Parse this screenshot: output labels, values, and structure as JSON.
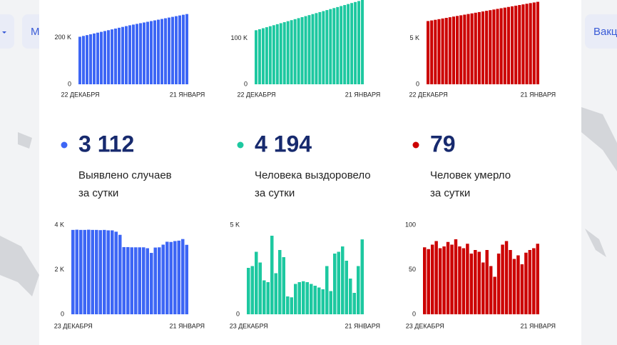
{
  "nav": [
    "М",
    "Вакц"
  ],
  "stats": [
    {
      "value": "3 112",
      "lines": [
        "Выявлено случаев",
        "за сутки"
      ]
    },
    {
      "value": "4 194",
      "lines": [
        "Человека выздоровело",
        "за сутки"
      ]
    },
    {
      "value": "79",
      "lines": [
        "Человек умерло",
        "за сутки"
      ]
    }
  ],
  "chart_data": [
    {
      "type": "bar",
      "color": "#3d66f5",
      "ylim": [
        0,
        360000
      ],
      "yticks": [
        0,
        {
          "value": 200000,
          "label": "200 K"
        }
      ],
      "categories": [
        "22 ДЕКАБРЯ",
        null,
        null,
        null,
        null,
        null,
        null,
        null,
        null,
        null,
        null,
        null,
        null,
        null,
        null,
        null,
        null,
        null,
        null,
        null,
        null,
        null,
        null,
        null,
        null,
        null,
        null,
        null,
        null,
        null,
        "21 ЯНВАРЯ"
      ],
      "values": [
        203000,
        206500,
        210000,
        213500,
        217000,
        220500,
        224000,
        227500,
        231000,
        234500,
        238000,
        241500,
        245000,
        248500,
        252000,
        255000,
        258000,
        261000,
        264000,
        267000,
        270000,
        273000,
        276000,
        279000,
        282000,
        285000,
        288000,
        291000,
        294000,
        297000,
        300000
      ]
    },
    {
      "type": "bar",
      "color": "#1dc8a0",
      "ylim": [
        0,
        184000
      ],
      "yticks": [
        0,
        {
          "value": 100000,
          "label": "100 K"
        }
      ],
      "categories": [
        "22 ДЕКАБРЯ",
        null,
        null,
        null,
        null,
        null,
        null,
        null,
        null,
        null,
        null,
        null,
        null,
        null,
        null,
        null,
        null,
        null,
        null,
        null,
        null,
        null,
        null,
        null,
        null,
        null,
        null,
        null,
        null,
        null,
        "21 ЯНВАРЯ"
      ],
      "values": [
        118000,
        120200,
        122400,
        124600,
        126800,
        129000,
        131200,
        133400,
        135600,
        137800,
        140000,
        142200,
        144400,
        146600,
        148800,
        151000,
        153200,
        155400,
        157600,
        159800,
        162000,
        164200,
        166400,
        168600,
        170800,
        173000,
        175200,
        177400,
        179600,
        181800,
        184000
      ]
    },
    {
      "type": "bar",
      "color": "#cc0000",
      "ylim": [
        0,
        9200
      ],
      "yticks": [
        0,
        {
          "value": 5000,
          "label": "5 K"
        }
      ],
      "categories": [
        "22 ДЕКАБРЯ",
        null,
        null,
        null,
        null,
        null,
        null,
        null,
        null,
        null,
        null,
        null,
        null,
        null,
        null,
        null,
        null,
        null,
        null,
        null,
        null,
        null,
        null,
        null,
        null,
        null,
        null,
        null,
        null,
        null,
        "21 ЯНВАРЯ"
      ],
      "values": [
        6900,
        6970,
        7040,
        7110,
        7180,
        7250,
        7320,
        7390,
        7460,
        7530,
        7600,
        7670,
        7740,
        7810,
        7880,
        7950,
        8020,
        8090,
        8160,
        8230,
        8300,
        8370,
        8440,
        8510,
        8580,
        8650,
        8720,
        8790,
        8860,
        8930,
        9000
      ]
    },
    {
      "type": "bar",
      "color": "#3d66f5",
      "ylim": [
        0,
        4000
      ],
      "yticks": [
        0,
        {
          "value": 2000,
          "label": "2 K"
        },
        {
          "value": 4000,
          "label": "4 K"
        }
      ],
      "categories": [
        "23 ДЕКАБРЯ",
        null,
        null,
        null,
        null,
        null,
        null,
        null,
        null,
        null,
        null,
        null,
        null,
        null,
        null,
        null,
        null,
        null,
        null,
        null,
        null,
        null,
        null,
        null,
        null,
        null,
        null,
        null,
        null,
        "21 ЯНВАРЯ"
      ],
      "values": [
        3780,
        3790,
        3780,
        3780,
        3790,
        3780,
        3780,
        3770,
        3780,
        3760,
        3760,
        3700,
        3560,
        3010,
        3010,
        3000,
        3000,
        3000,
        3000,
        2960,
        2750,
        2990,
        3000,
        3120,
        3250,
        3240,
        3280,
        3300,
        3370,
        3112
      ]
    },
    {
      "type": "bar",
      "color": "#1dc8a0",
      "ylim": [
        0,
        5000
      ],
      "yticks": [
        0,
        {
          "value": 5000,
          "label": "5 K"
        }
      ],
      "categories": [
        "23 ДЕКАБРЯ",
        null,
        null,
        null,
        null,
        null,
        null,
        null,
        null,
        null,
        null,
        null,
        null,
        null,
        null,
        null,
        null,
        null,
        null,
        null,
        null,
        null,
        null,
        null,
        null,
        null,
        null,
        null,
        null,
        "21 ЯНВАРЯ"
      ],
      "values": [
        2600,
        2700,
        3500,
        2900,
        1900,
        1800,
        4400,
        2300,
        3600,
        3200,
        1000,
        950,
        1700,
        1800,
        1850,
        1800,
        1700,
        1600,
        1500,
        1400,
        2700,
        1300,
        3400,
        3500,
        3800,
        3000,
        2000,
        1200,
        2700,
        4194
      ]
    },
    {
      "type": "bar",
      "color": "#cc0000",
      "ylim": [
        0,
        100
      ],
      "yticks": [
        0,
        50,
        100
      ],
      "categories": [
        "23 ДЕКАБРЯ",
        null,
        null,
        null,
        null,
        null,
        null,
        null,
        null,
        null,
        null,
        null,
        null,
        null,
        null,
        null,
        null,
        null,
        null,
        null,
        null,
        null,
        null,
        null,
        null,
        null,
        null,
        null,
        null,
        "21 ЯНВАРЯ"
      ],
      "values": [
        75,
        73,
        78,
        82,
        74,
        76,
        81,
        78,
        84,
        76,
        74,
        79,
        68,
        72,
        70,
        58,
        72,
        54,
        42,
        68,
        78,
        82,
        72,
        62,
        66,
        56,
        69,
        72,
        74,
        79
      ]
    }
  ]
}
